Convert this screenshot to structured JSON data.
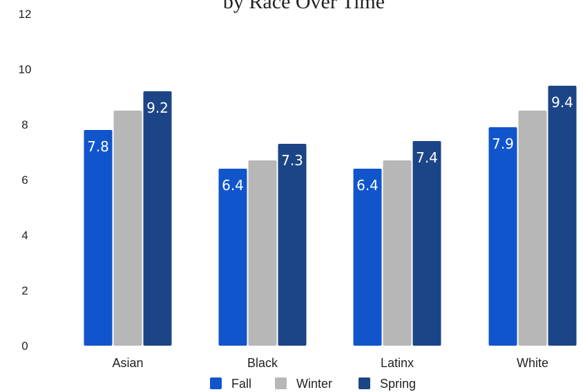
{
  "chart_data": {
    "type": "bar",
    "title": "by Race Over Time",
    "categories": [
      "Asian",
      "Black",
      "Latinx",
      "White"
    ],
    "series": [
      {
        "name": "Fall",
        "values": [
          7.8,
          6.4,
          6.4,
          7.9
        ],
        "labels": [
          "7.8",
          "6.4",
          "6.4",
          "7.9"
        ],
        "color": "#1155cc"
      },
      {
        "name": "Winter",
        "values": [
          8.5,
          6.7,
          6.7,
          8.5
        ],
        "labels": [
          "",
          "",
          "",
          ""
        ],
        "color": "#b7b7b7"
      },
      {
        "name": "Spring",
        "values": [
          9.2,
          7.3,
          7.4,
          9.4
        ],
        "labels": [
          "9.2",
          "7.3",
          "7.4",
          "9.4"
        ],
        "color": "#1c4587"
      }
    ],
    "ylim": [
      0,
      12
    ],
    "yticks": [
      "0",
      "2",
      "4",
      "6",
      "8",
      "10",
      "12"
    ],
    "xlabel": "",
    "ylabel": "",
    "grid": false,
    "legend_position": "bottom"
  }
}
